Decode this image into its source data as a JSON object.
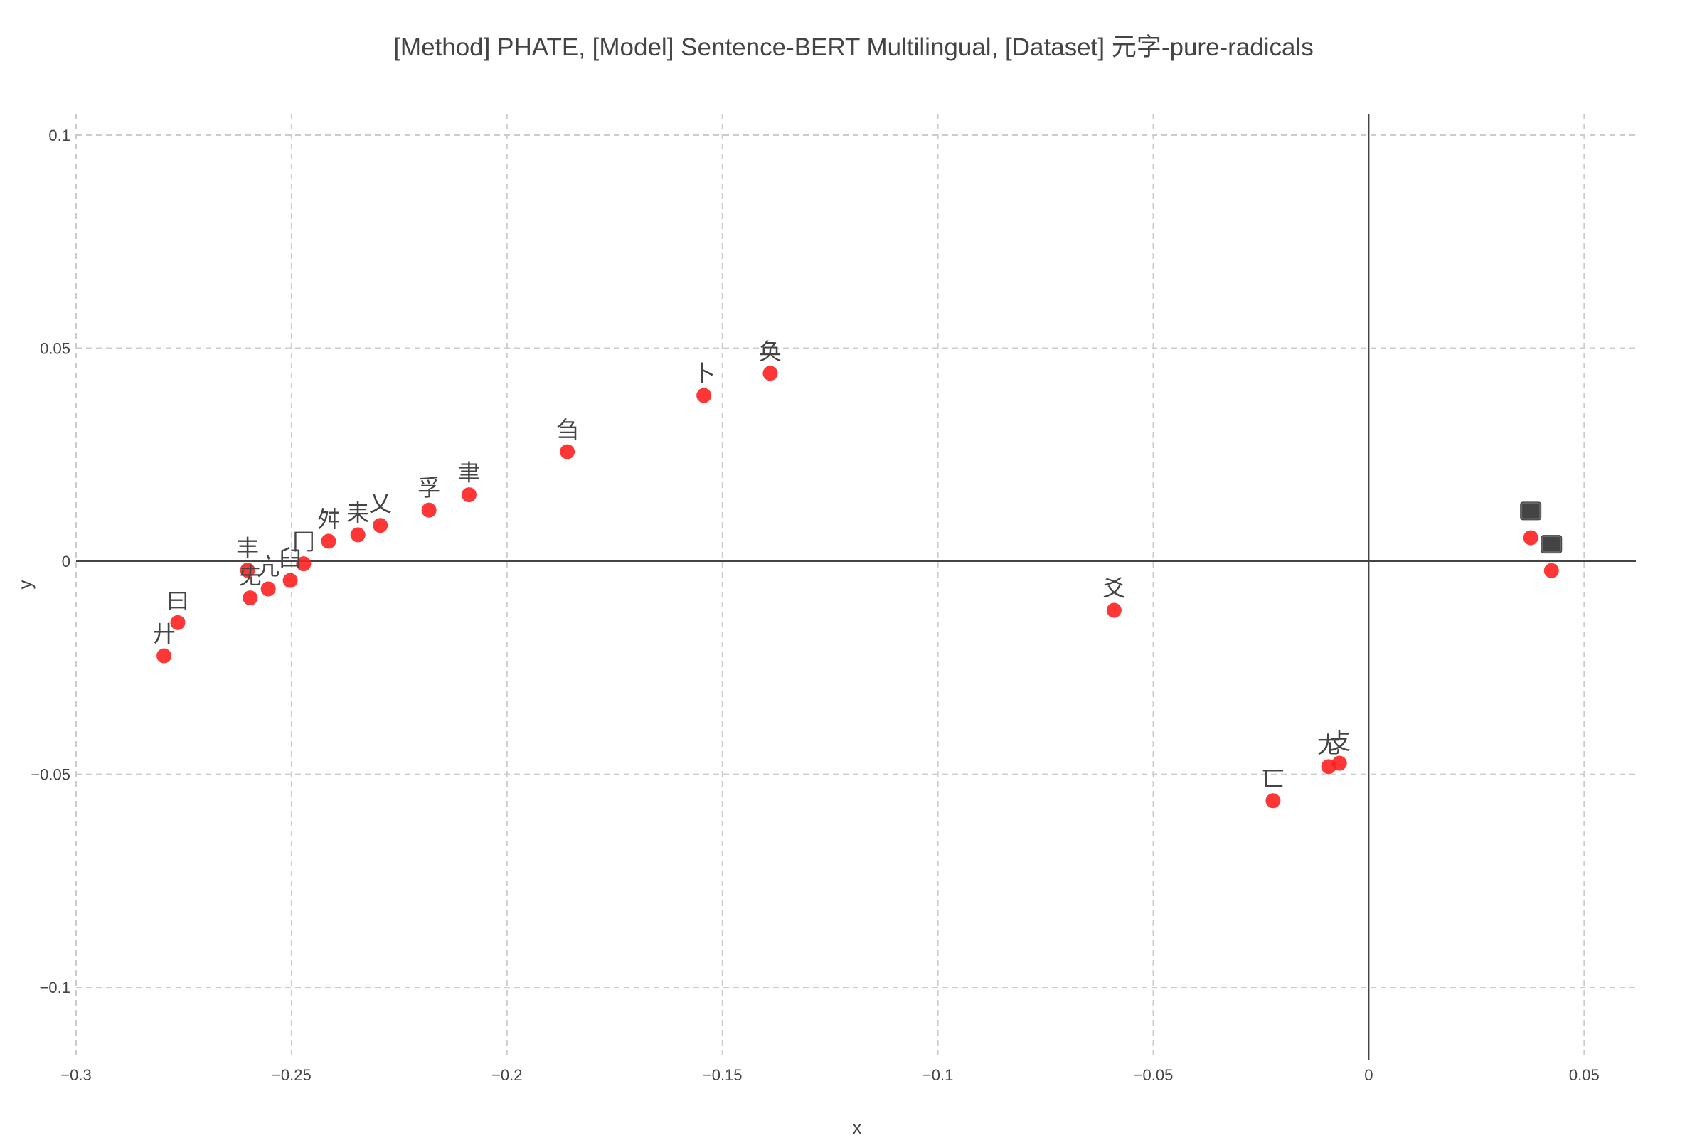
{
  "chart_data": {
    "type": "scatter",
    "title": "[Method] PHATE, [Model] Sentence-BERT Multilingual, [Dataset] 元字-pure-radicals",
    "xlabel": "x",
    "ylabel": "y",
    "xlim": [
      -0.3,
      0.062
    ],
    "ylim": [
      -0.117,
      0.105
    ],
    "xticks": [
      -0.3,
      -0.25,
      -0.2,
      -0.15,
      -0.1,
      -0.05,
      0,
      0.05
    ],
    "xtick_labels": [
      "−0.3",
      "−0.25",
      "−0.2",
      "−0.15",
      "−0.1",
      "−0.05",
      "0",
      "0.05"
    ],
    "yticks": [
      -0.1,
      -0.05,
      0,
      0.05,
      0.1
    ],
    "ytick_labels": [
      "−0.1",
      "−0.05",
      "0",
      "0.05",
      "0.1"
    ],
    "grid": true,
    "marker_color": "#ff2020",
    "points": [
      {
        "x": -0.2796,
        "y": -0.0222,
        "label": "廾"
      },
      {
        "x": -0.2764,
        "y": -0.0144,
        "label": "曰"
      },
      {
        "x": -0.2596,
        "y": -0.0086,
        "label": "兂"
      },
      {
        "x": -0.2602,
        "y": -0.0021,
        "label": "丰"
      },
      {
        "x": -0.2554,
        "y": -0.0065,
        "label": "亢"
      },
      {
        "x": -0.2503,
        "y": -0.0045,
        "label": "臼"
      },
      {
        "x": -0.2472,
        "y": -0.0006,
        "label": "冂"
      },
      {
        "x": -0.2414,
        "y": 0.0047,
        "label": "舛"
      },
      {
        "x": -0.2346,
        "y": 0.0062,
        "label": "耒"
      },
      {
        "x": -0.2294,
        "y": 0.0084,
        "label": "乂"
      },
      {
        "x": -0.2181,
        "y": 0.012,
        "label": "孚"
      },
      {
        "x": -0.2088,
        "y": 0.0156,
        "label": "聿"
      },
      {
        "x": -0.186,
        "y": 0.0257,
        "label": "刍"
      },
      {
        "x": -0.1543,
        "y": 0.0389,
        "label": "卜"
      },
      {
        "x": -0.1389,
        "y": 0.0441,
        "label": "奂"
      },
      {
        "x": -0.0591,
        "y": -0.0115,
        "label": "爻"
      },
      {
        "x": -0.0222,
        "y": -0.0562,
        "label": "匸"
      },
      {
        "x": -0.0093,
        "y": -0.0482,
        "label": "尢"
      },
      {
        "x": -0.0068,
        "y": -0.0474,
        "label": "攴"
      },
      {
        "x": 0.0376,
        "y": 0.0055,
        "label": ""
      },
      {
        "x": 0.0424,
        "y": -0.0022,
        "label": ""
      }
    ],
    "clusters": [
      {
        "x": 0.0376,
        "y": 0.0118
      },
      {
        "x": 0.0424,
        "y": 0.004
      }
    ]
  }
}
